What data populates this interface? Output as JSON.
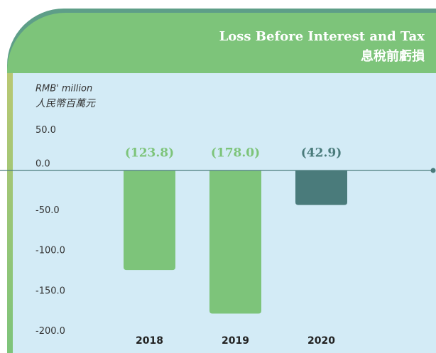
{
  "chart_data": {
    "type": "bar",
    "title": "Loss Before Interest and Tax",
    "subtitle": "息稅前虧損",
    "ylabel": [
      "RMB' million",
      "人民幣百萬元"
    ],
    "categories": [
      "2018",
      "2019",
      "2020"
    ],
    "values": [
      -123.8,
      -178.0,
      -42.9
    ],
    "value_labels": [
      "(123.8)",
      "(178.0)",
      "(42.9)"
    ],
    "colors": [
      "#7dc47a",
      "#7dc47a",
      "#4a7b7b"
    ],
    "ylim": [
      -227,
      121
    ],
    "yticks": [
      {
        "value": 50,
        "label": "50.0"
      },
      {
        "value": 0,
        "label": "0.0"
      },
      {
        "value": -50,
        "label": "-50.0"
      },
      {
        "value": -100,
        "label": "-100.0"
      },
      {
        "value": -150,
        "label": "-150.0"
      },
      {
        "value": -200,
        "label": "-200.0"
      }
    ],
    "grid": false
  }
}
